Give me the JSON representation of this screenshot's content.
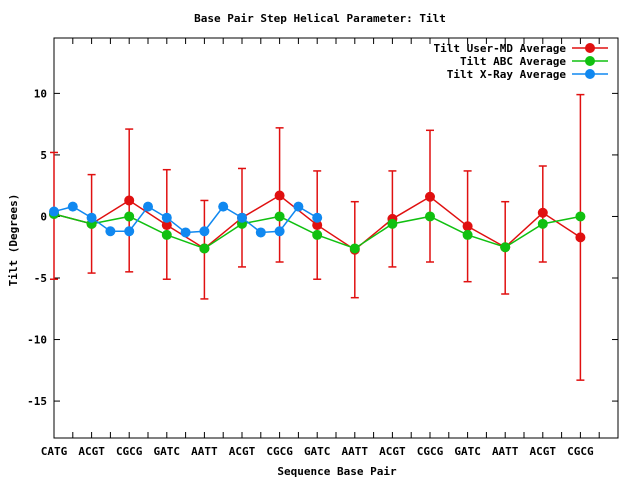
{
  "chart_data": {
    "type": "line",
    "title": "Base Pair Step Helical Parameter: Tilt",
    "xlabel": "Sequence Base Pair",
    "ylabel": "Tilt (Degrees)",
    "ylim": [
      -18,
      14.5
    ],
    "yticks": [
      10,
      5,
      0,
      -5,
      -10,
      -15
    ],
    "categories": [
      "CATG",
      "ACGT",
      "CGCG",
      "GATC",
      "AATT",
      "ACGT",
      "CGCG",
      "GATC",
      "AATT",
      "ACGT",
      "CGCG",
      "GATC",
      "AATT",
      "ACGT",
      "CGCG"
    ],
    "x": [
      0,
      0.5,
      1,
      1.5,
      2,
      2.5,
      3,
      3.5,
      4,
      4.5,
      5,
      5.5,
      6,
      6.5,
      7,
      7.5,
      8,
      8.5,
      9,
      9.5,
      10,
      10.5,
      11,
      11.5,
      12,
      12.5,
      13,
      13.5,
      14,
      14.5,
      15
    ],
    "legend_position": "top-right",
    "grid": false,
    "series": [
      {
        "name": "Tilt User-MD Average",
        "color": "#e01010",
        "x": [
          0,
          1,
          2,
          3,
          4,
          5,
          6,
          7,
          8,
          9,
          10,
          11,
          12,
          13,
          14
        ],
        "values": [
          0.2,
          -0.6,
          1.3,
          -0.7,
          -2.6,
          -0.1,
          1.7,
          -0.7,
          -2.7,
          -0.2,
          1.6,
          -0.8,
          -2.5,
          0.3,
          -1.7
        ],
        "error_low": [
          -5.1,
          -4.6,
          -4.5,
          -5.1,
          -6.7,
          -4.1,
          -3.7,
          -5.1,
          -6.6,
          -4.1,
          -3.7,
          -5.3,
          -6.3,
          -3.7,
          -13.3
        ],
        "error_high": [
          5.2,
          3.4,
          7.1,
          3.8,
          1.3,
          3.9,
          7.2,
          3.7,
          1.2,
          3.7,
          7.0,
          3.7,
          1.2,
          4.1,
          9.9
        ]
      },
      {
        "name": "Tilt ABC Average",
        "color": "#10c010",
        "x": [
          0,
          1,
          2,
          3,
          4,
          5,
          6,
          7,
          8,
          9,
          10,
          11,
          12,
          13,
          14
        ],
        "values": [
          0.2,
          -0.6,
          0.0,
          -1.5,
          -2.6,
          -0.6,
          0.0,
          -1.5,
          -2.6,
          -0.6,
          0.0,
          -1.5,
          -2.5,
          -0.6,
          0.0
        ]
      },
      {
        "name": "Tilt X-Ray Average",
        "color": "#1088f0",
        "x": [
          0,
          0.5,
          1,
          1.5,
          2,
          2.5,
          3,
          3.5,
          4,
          4.5,
          5,
          5.5,
          6,
          6.5,
          7
        ],
        "values": [
          0.4,
          0.8,
          -0.1,
          -1.2,
          -1.2,
          0.8,
          -0.1,
          -1.3,
          -1.2,
          0.8,
          -0.1,
          -1.3,
          -1.2,
          0.8,
          -0.1
        ]
      }
    ]
  }
}
